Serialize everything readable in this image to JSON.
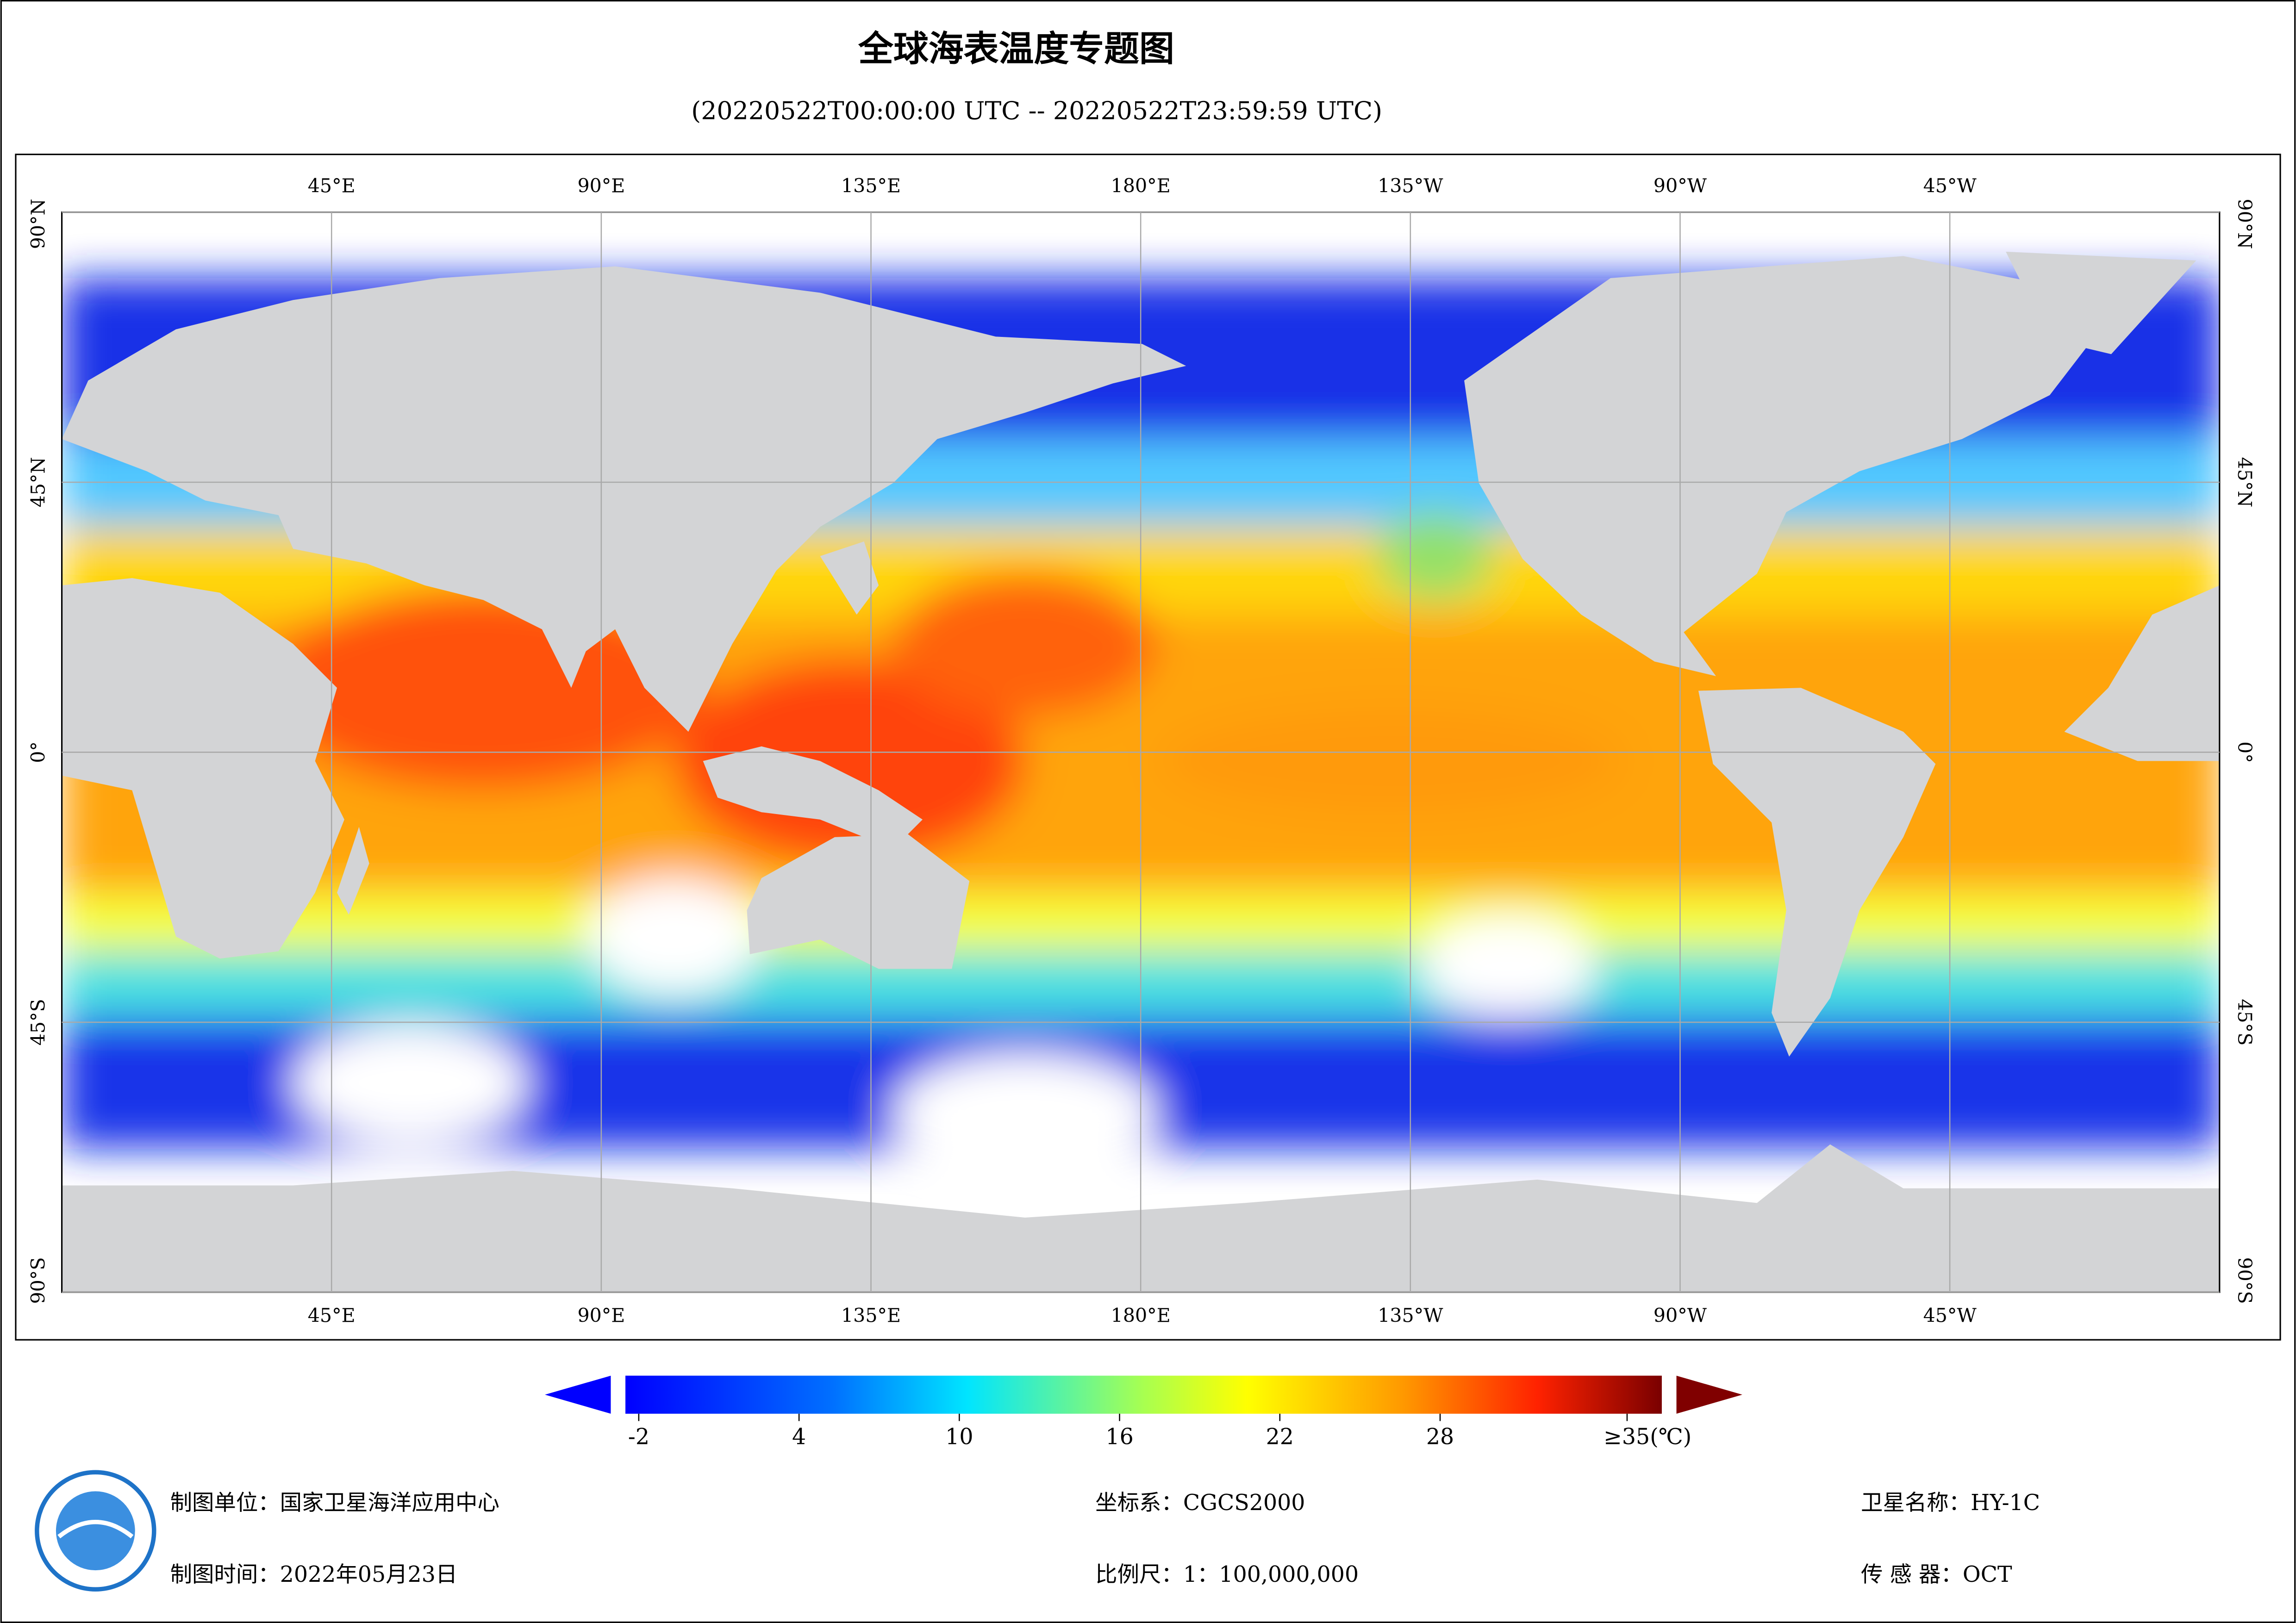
{
  "title": "全球海表温度专题图",
  "subtitle": "(20220522T00:00:00 UTC -- 20220522T23:59:59 UTC)",
  "map": {
    "lonlim": [
      0,
      360
    ],
    "latlim": [
      -90,
      90
    ],
    "lonticks": [
      {
        "value": 45,
        "label": "45°E"
      },
      {
        "value": 90,
        "label": "90°E"
      },
      {
        "value": 135,
        "label": "135°E"
      },
      {
        "value": 180,
        "label": "180°E"
      },
      {
        "value": 225,
        "label": "135°W"
      },
      {
        "value": 270,
        "label": "90°W"
      },
      {
        "value": 315,
        "label": "45°W"
      }
    ],
    "latticks": [
      {
        "value": 90,
        "label": "90°N"
      },
      {
        "value": 45,
        "label": "45°N"
      },
      {
        "value": 0,
        "label": "0°"
      },
      {
        "value": -45,
        "label": "45°S"
      },
      {
        "value": -90,
        "label": "90°S"
      }
    ]
  },
  "colorbar": {
    "range": [
      -2.5,
      36.3
    ],
    "ticks": [
      -2,
      4,
      10,
      16,
      22,
      28,
      {
        "value": 35,
        "label": "≥35(℃)"
      }
    ]
  },
  "footer": {
    "unit": "制图单位：国家卫星海洋应用中心",
    "date": "制图时间：2022年05月23日",
    "crs": "坐标系：CGCS2000",
    "scale": "比例尺：1：100,000,000",
    "satellite": "卫星名称：HY-1C",
    "sensor": "传 感 器：OCT"
  }
}
